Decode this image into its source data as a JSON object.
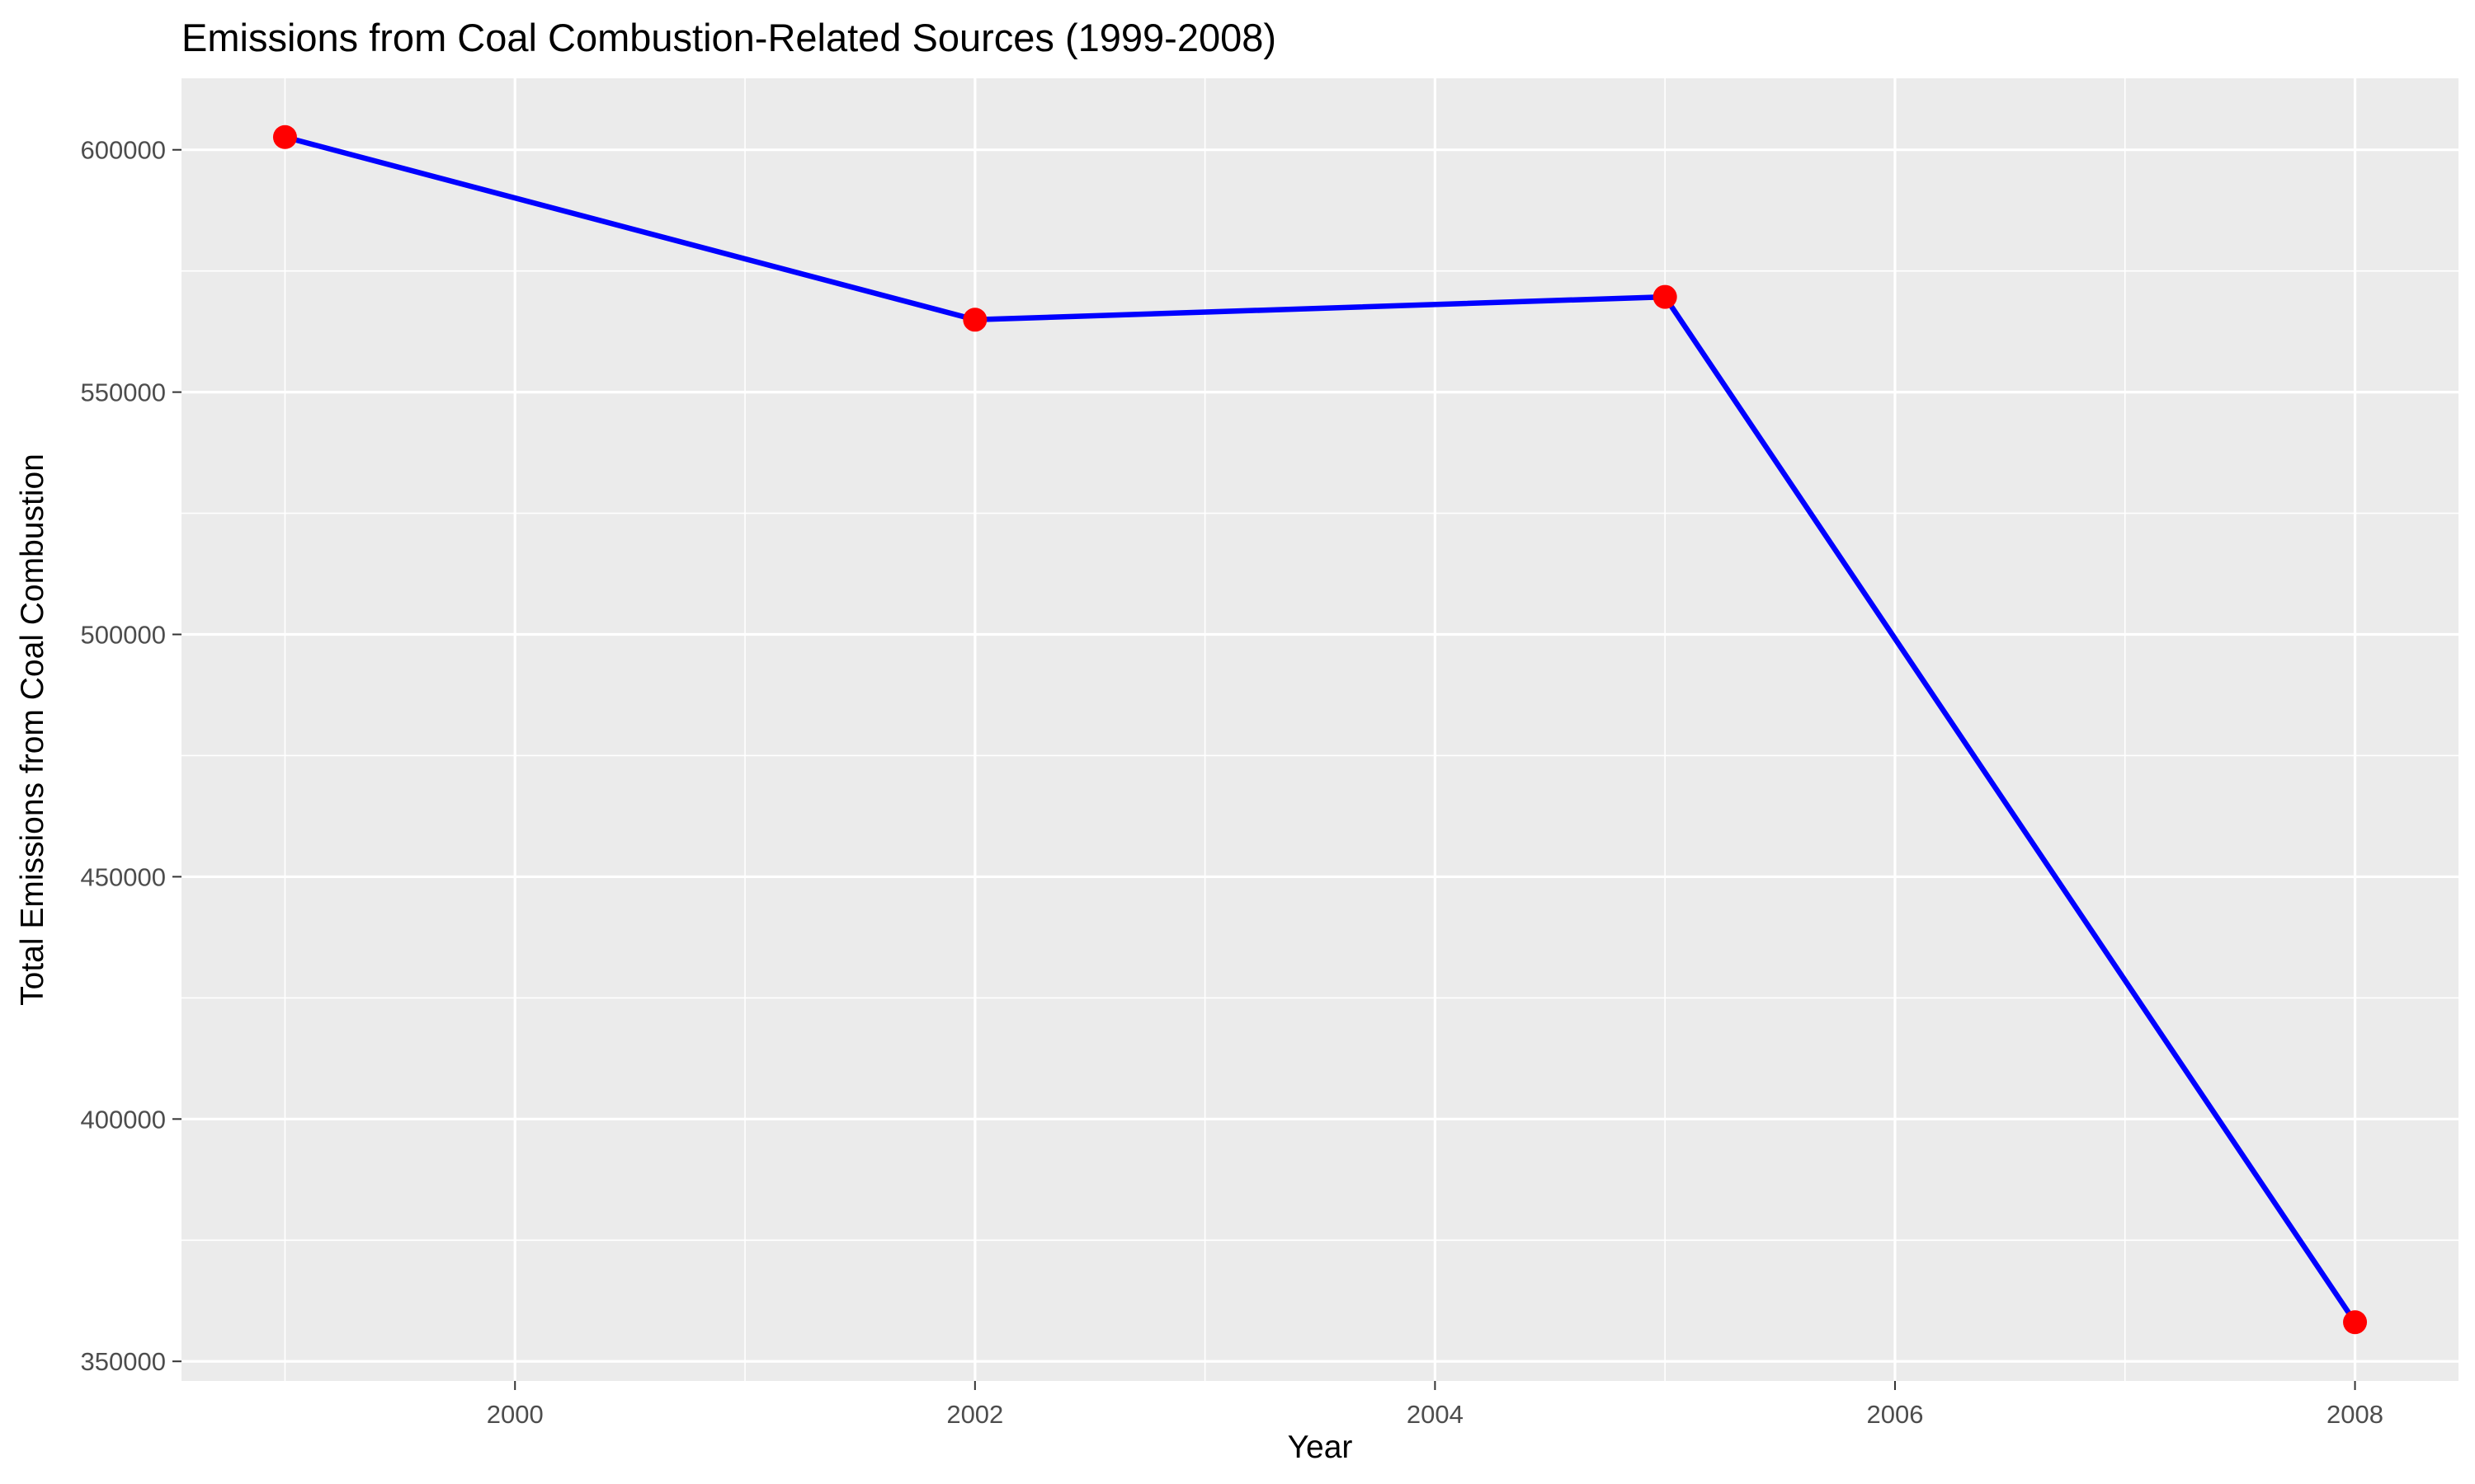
{
  "chart_data": {
    "type": "line",
    "title": "Emissions from Coal Combustion-Related Sources (1999-2008)",
    "xlabel": "Year",
    "ylabel": "Total Emissions from Coal Combustion",
    "x": [
      1999,
      2002,
      2005,
      2008
    ],
    "series": [
      {
        "values": [
          602624,
          564940,
          569655,
          358083
        ]
      }
    ],
    "xlim": [
      1998.55,
      2008.45
    ],
    "ylim": [
      345956,
      614751
    ],
    "x_ticks": [
      2000,
      2002,
      2004,
      2006,
      2008
    ],
    "x_tick_labels": [
      "2000",
      "2002",
      "2004",
      "2006",
      "2008"
    ],
    "y_ticks": [
      350000,
      400000,
      450000,
      500000,
      550000,
      600000
    ],
    "y_tick_labels": [
      "350000",
      "400000",
      "450000",
      "500000",
      "550000",
      "600000"
    ],
    "grid": true,
    "legend": "none",
    "colors": {
      "line": "#0000ff",
      "points": "#ff0000",
      "panel_background": "#ebebeb",
      "grid": "#ffffff"
    }
  }
}
